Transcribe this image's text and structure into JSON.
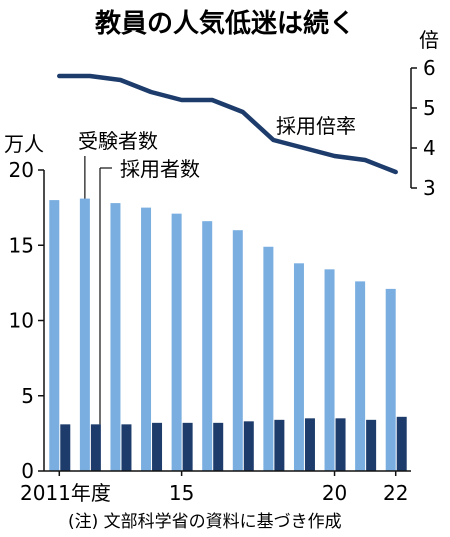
{
  "chart_data": {
    "type": "bar",
    "title": "教員の人気低迷は続く",
    "note": "(注) 文部科学省の資料に基づき作成",
    "x_ticks": [
      "2011年度",
      "15",
      "20",
      "22"
    ],
    "x_tick_years": [
      2011,
      2015,
      2020,
      2022
    ],
    "years": [
      2011,
      2012,
      2013,
      2014,
      2015,
      2016,
      2017,
      2018,
      2019,
      2020,
      2021,
      2022
    ],
    "left_axis": {
      "unit": "万人",
      "ticks": [
        0,
        5,
        10,
        15,
        20
      ],
      "ylim": [
        0,
        20
      ]
    },
    "right_axis": {
      "unit": "倍",
      "ticks": [
        3,
        4,
        5,
        6
      ],
      "ylim": [
        3,
        6
      ]
    },
    "series": [
      {
        "name": "受験者数",
        "type": "bar",
        "axis": "left",
        "color": "#7aaee0",
        "values": [
          18.0,
          18.1,
          17.8,
          17.5,
          17.1,
          16.6,
          16.0,
          14.9,
          13.8,
          13.4,
          12.6,
          12.1
        ]
      },
      {
        "name": "採用者数",
        "type": "bar",
        "axis": "left",
        "color": "#1d3c6b",
        "values": [
          3.1,
          3.1,
          3.1,
          3.2,
          3.2,
          3.2,
          3.3,
          3.4,
          3.5,
          3.5,
          3.4,
          3.6
        ]
      },
      {
        "name": "採用倍率",
        "type": "line",
        "axis": "right",
        "color": "#1d3c6b",
        "values": [
          5.8,
          5.8,
          5.7,
          5.4,
          5.2,
          5.2,
          4.9,
          4.2,
          4.0,
          3.8,
          3.7,
          3.4
        ]
      }
    ]
  }
}
